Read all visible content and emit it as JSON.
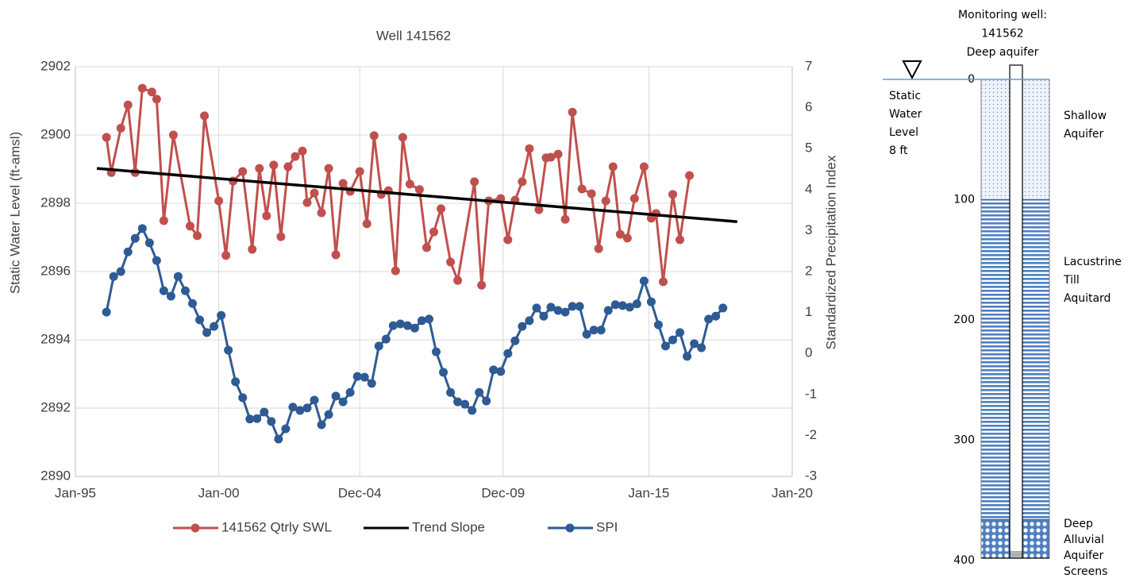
{
  "chart_data": {
    "type": "line",
    "title": "Well 141562",
    "y_label": "Static Water Level (ft-amsl)",
    "y2_label": "Standardized Precipitation Index",
    "xlim": [
      "1995-01",
      "2020-01"
    ],
    "xticks": [
      {
        "value": "1995-01",
        "label": "Jan-95"
      },
      {
        "value": "2000-01",
        "label": "Jan-00"
      },
      {
        "value": "2004-12",
        "label": "Dec-04"
      },
      {
        "value": "2009-12",
        "label": "Dec-09"
      },
      {
        "value": "2015-01",
        "label": "Jan-15"
      },
      {
        "value": "2020-01",
        "label": "Jan-20"
      }
    ],
    "ylim": [
      2890,
      2902
    ],
    "yticks": [
      2890,
      2892,
      2894,
      2896,
      2898,
      2900,
      2902
    ],
    "y2lim": [
      -3,
      7
    ],
    "y2ticks": [
      -3,
      -2,
      -1,
      0,
      1,
      2,
      3,
      4,
      5,
      6,
      7
    ],
    "grid": true,
    "legend": "bottom",
    "series": [
      {
        "name": "141562 Qtrly SWL",
        "color": "#c0504d",
        "marker": true,
        "x": [
          "1996-02",
          "1996-04",
          "1996-08",
          "1996-11",
          "1997-02",
          "1997-05",
          "1997-09",
          "1997-11",
          "1998-02",
          "1998-06",
          "1999-01",
          "1999-04",
          "1999-07",
          "2000-01",
          "2000-04",
          "2000-07",
          "2000-11",
          "2001-03",
          "2001-06",
          "2001-09",
          "2001-12",
          "2002-03",
          "2002-06",
          "2002-09",
          "2002-12",
          "2003-02",
          "2003-05",
          "2003-08",
          "2003-11",
          "2004-02",
          "2004-05",
          "2004-08",
          "2004-12",
          "2005-03",
          "2005-06",
          "2005-09",
          "2005-12",
          "2006-03",
          "2006-06",
          "2006-09",
          "2007-01",
          "2007-04",
          "2007-07",
          "2007-10",
          "2008-02",
          "2008-05",
          "2008-12",
          "2009-03",
          "2009-06",
          "2009-11",
          "2010-02",
          "2010-05",
          "2010-08",
          "2010-11",
          "2011-03",
          "2011-06",
          "2011-08",
          "2011-11",
          "2012-02",
          "2012-05",
          "2012-09",
          "2013-01",
          "2013-04",
          "2013-07",
          "2013-10",
          "2014-01",
          "2014-04",
          "2014-07",
          "2014-11",
          "2015-02",
          "2015-04",
          "2015-07",
          "2015-11",
          "2016-02",
          "2016-06"
        ],
        "values": [
          2899.93,
          2898.9,
          2900.2,
          2900.88,
          2898.9,
          2901.37,
          2901.26,
          2901.05,
          2897.49,
          2900.0,
          2897.33,
          2897.05,
          2900.56,
          2898.07,
          2896.47,
          2898.65,
          2898.93,
          2896.65,
          2899.02,
          2897.63,
          2899.12,
          2897.02,
          2899.07,
          2899.37,
          2899.53,
          2898.02,
          2898.3,
          2897.72,
          2899.02,
          2896.49,
          2898.58,
          2898.35,
          2898.93,
          2897.4,
          2899.98,
          2898.26,
          2898.37,
          2896.02,
          2899.93,
          2898.56,
          2898.4,
          2896.7,
          2897.16,
          2897.84,
          2896.28,
          2895.74,
          2898.63,
          2895.6,
          2898.07,
          2898.14,
          2896.93,
          2898.09,
          2898.63,
          2899.6,
          2897.81,
          2899.33,
          2899.35,
          2899.44,
          2897.53,
          2900.67,
          2898.42,
          2898.28,
          2896.67,
          2898.07,
          2899.07,
          2897.09,
          2896.98,
          2898.14,
          2899.07,
          2897.56,
          2897.7,
          2895.7,
          2898.26,
          2896.93,
          2898.81
        ]
      },
      {
        "name": "Trend Slope",
        "color": "#000000",
        "marker": false,
        "x": [
          "1995-10",
          "2018-02"
        ],
        "values": [
          2899.02,
          2897.46
        ]
      },
      {
        "name": "SPI",
        "color": "#2e5b94",
        "marker": true,
        "axis": "y2",
        "x": [
          "1996-02",
          "1996-05",
          "1996-08",
          "1996-11",
          "1997-02",
          "1997-05",
          "1997-08",
          "1997-11",
          "1998-02",
          "1998-05",
          "1998-08",
          "1998-11",
          "1999-02",
          "1999-05",
          "1999-08",
          "1999-11",
          "2000-02",
          "2000-05",
          "2000-08",
          "2000-11",
          "2001-02",
          "2001-05",
          "2001-08",
          "2001-11",
          "2002-02",
          "2002-05",
          "2002-08",
          "2002-11",
          "2003-02",
          "2003-05",
          "2003-08",
          "2003-11",
          "2004-02",
          "2004-05",
          "2004-08",
          "2004-11",
          "2005-02",
          "2005-05",
          "2005-08",
          "2005-11",
          "2006-02",
          "2006-05",
          "2006-08",
          "2006-11",
          "2007-02",
          "2007-05",
          "2007-08",
          "2007-11",
          "2008-02",
          "2008-05",
          "2008-08",
          "2008-11",
          "2009-02",
          "2009-05",
          "2009-08",
          "2009-11",
          "2010-02",
          "2010-05",
          "2010-08",
          "2010-11",
          "2011-02",
          "2011-05",
          "2011-08",
          "2011-11",
          "2012-02",
          "2012-05",
          "2012-08",
          "2012-11",
          "2013-02",
          "2013-05",
          "2013-08",
          "2013-11",
          "2014-02",
          "2014-05",
          "2014-08",
          "2014-11",
          "2015-02",
          "2015-05",
          "2015-08",
          "2015-11",
          "2016-02",
          "2016-05",
          "2016-08",
          "2016-11",
          "2017-02",
          "2017-05",
          "2017-08"
        ],
        "values": [
          1.01,
          1.88,
          2.0,
          2.48,
          2.81,
          3.05,
          2.7,
          2.27,
          1.53,
          1.4,
          1.88,
          1.53,
          1.22,
          0.82,
          0.51,
          0.66,
          0.93,
          0.08,
          -0.69,
          -1.08,
          -1.6,
          -1.59,
          -1.43,
          -1.66,
          -2.09,
          -1.84,
          -1.31,
          -1.39,
          -1.33,
          -1.14,
          -1.74,
          -1.49,
          -1.04,
          -1.18,
          -0.95,
          -0.56,
          -0.58,
          -0.73,
          0.18,
          0.35,
          0.68,
          0.72,
          0.68,
          0.62,
          0.8,
          0.84,
          0.04,
          -0.46,
          -0.95,
          -1.18,
          -1.24,
          -1.39,
          -0.95,
          -1.16,
          -0.4,
          -0.44,
          0.0,
          0.31,
          0.66,
          0.8,
          1.11,
          0.91,
          1.13,
          1.05,
          1.01,
          1.15,
          1.15,
          0.47,
          0.57,
          0.57,
          1.05,
          1.19,
          1.17,
          1.13,
          1.21,
          1.77,
          1.26,
          0.7,
          0.18,
          0.33,
          0.51,
          -0.07,
          0.24,
          0.14,
          0.84,
          0.91,
          1.11
        ]
      }
    ]
  },
  "well_diagram": {
    "title_lines": [
      "Monitoring well:",
      "141562",
      "Deep aquifer"
    ],
    "water_level_lines": [
      "Static",
      "Water",
      "Level",
      "8 ft"
    ],
    "depth_lim": [
      0,
      400
    ],
    "depth_ticks": [
      0,
      100,
      200,
      300,
      400
    ],
    "layers": [
      {
        "label": [
          "Shallow",
          "Aquifer"
        ],
        "top": 0,
        "bottom": 100,
        "pattern": "dots"
      },
      {
        "label": [
          "Lacustrine",
          "Till",
          "Aquitard"
        ],
        "top": 100,
        "bottom": 366,
        "pattern": "stripes"
      },
      {
        "label": [
          "Deep",
          "Alluvial",
          "Aquifer",
          "Screens"
        ],
        "top": 366,
        "bottom": 398,
        "pattern": "circles"
      }
    ]
  }
}
